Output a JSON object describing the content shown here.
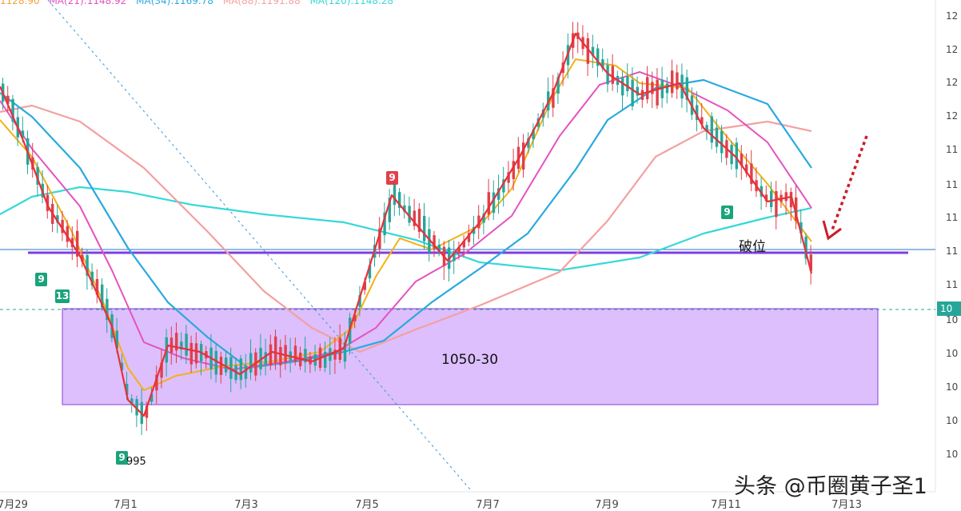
{
  "legend": {
    "items": [
      {
        "text": "1128.90",
        "color": "#f3a13a"
      },
      {
        "text": "MA(21):1148.92",
        "color": "#e552c0"
      },
      {
        "text": "MA(34):1169.78",
        "color": "#2aa9e0"
      },
      {
        "text": "MA(88):1191.88",
        "color": "#f4a0a0"
      },
      {
        "text": "MA(120):1148.28",
        "color": "#36d8d8"
      }
    ]
  },
  "chart_data": {
    "type": "candlestick",
    "x_ticks": [
      "7月29",
      "7月1",
      "7月3",
      "7月5",
      "7月7",
      "7月9",
      "7月11",
      "7月13"
    ],
    "y_ticks": [
      "12",
      "12",
      "12",
      "12",
      "11",
      "11",
      "11",
      "11",
      "11",
      "10",
      "10",
      "10",
      "10",
      "10"
    ],
    "current_price_label": "10",
    "annotations": {
      "zone_label": "1050-30",
      "break_label": "破位",
      "low_label": "995",
      "badges": [
        {
          "text": "9",
          "color": "green"
        },
        {
          "text": "13",
          "color": "green"
        },
        {
          "text": "9",
          "color": "green"
        },
        {
          "text": "9",
          "color": "red"
        },
        {
          "text": "9",
          "color": "green"
        }
      ]
    },
    "colors": {
      "up": "#e0404a",
      "down": "#26a69a",
      "ma_fast": "#e8303a",
      "ma_orange": "#f5b014",
      "ma21": "#e552c0",
      "ma34": "#2aa9e0",
      "ma88": "#f4a0a0",
      "ma120": "#36d8d8",
      "zone_fill": "#d6b4fb",
      "zone_border": "#8b3fd6",
      "level_line": "#7b3fe4"
    }
  },
  "watermark": "头条 @币圈黄子圣1"
}
